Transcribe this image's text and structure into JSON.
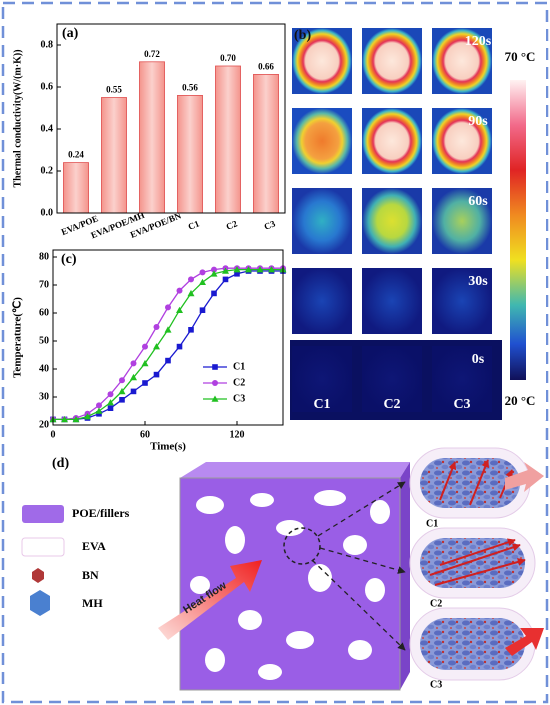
{
  "chart_data": [
    {
      "type": "bar",
      "panel_label": "(a)",
      "ylabel": "Thermal conductivity(W/(m·K))",
      "categories": [
        "EVA/POE",
        "EVA/POE/MH",
        "EVA/POE/BN",
        "C1",
        "C2",
        "C3"
      ],
      "values": [
        0.24,
        0.55,
        0.72,
        0.56,
        0.7,
        0.66
      ],
      "value_labels": [
        "0.24",
        "0.55",
        "0.72",
        "0.56",
        "0.70",
        "0.66"
      ],
      "color": "#f4948c",
      "ylim": [
        0,
        0.9
      ],
      "yticks": [
        {
          "value": 0,
          "label": "0.0"
        },
        0.2,
        0.4,
        0.6,
        0.8
      ]
    },
    {
      "type": "line",
      "panel_label": "(c)",
      "xlabel": "Time(s)",
      "ylabel": "Temperature(℃)",
      "x": [
        0,
        7.5,
        15,
        22.5,
        30,
        37.5,
        45,
        52.5,
        60,
        67.5,
        75,
        82.5,
        90,
        97.5,
        105,
        112.5,
        120,
        127.5,
        135,
        142.5,
        150
      ],
      "series": [
        {
          "name": "C1",
          "color": "#1a1ad0",
          "marker": "square",
          "values": [
            22,
            22,
            22,
            22.5,
            24,
            26,
            29,
            32,
            35,
            38,
            43,
            48,
            54,
            61,
            67,
            72,
            74,
            75,
            75,
            75,
            75
          ]
        },
        {
          "name": "C2",
          "color": "#b040e0",
          "marker": "circle",
          "values": [
            22,
            22,
            22.5,
            24,
            27,
            31,
            36,
            42,
            48,
            55,
            62,
            68,
            72,
            74.5,
            75.5,
            76,
            76,
            76,
            76,
            76,
            76
          ]
        },
        {
          "name": "C3",
          "color": "#20c020",
          "marker": "triangle",
          "values": [
            22,
            22,
            22,
            23,
            25,
            28,
            32,
            37,
            42,
            48,
            54,
            61,
            67,
            71,
            74,
            75,
            75.5,
            75.5,
            75.5,
            75.5,
            75.5
          ]
        }
      ],
      "xlim": [
        0,
        150
      ],
      "xticks": [
        0,
        60,
        120
      ],
      "ylim": [
        20,
        82.5
      ],
      "yticks": [
        20,
        30,
        40,
        50,
        60,
        70,
        80
      ],
      "legend": "lower right"
    }
  ],
  "panel_b": {
    "panel_label": "(b)",
    "times": [
      "120s",
      "90s",
      "60s",
      "30s",
      "0s"
    ],
    "columns": [
      "C1",
      "C2",
      "C3"
    ],
    "scale_max": "70 °C",
    "scale_min": "20 °C"
  },
  "panel_d": {
    "panel_label": "(d)",
    "legend": [
      "POE/fillers",
      "EVA",
      "BN",
      "MH"
    ],
    "arrow_label": "Heat flow",
    "structures": [
      "C1",
      "C2",
      "C3"
    ]
  }
}
